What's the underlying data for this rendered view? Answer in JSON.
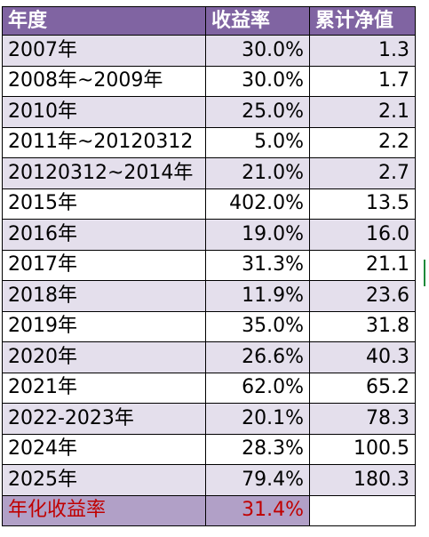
{
  "table": {
    "headers": [
      "年度",
      "收益率",
      "累计净值"
    ],
    "rows": [
      {
        "year": "2007年",
        "return": "30.0%",
        "nav": "1.3"
      },
      {
        "year": "2008年~2009年",
        "return": "30.0%",
        "nav": "1.7"
      },
      {
        "year": "2010年",
        "return": "25.0%",
        "nav": "2.1"
      },
      {
        "year": "2011年~20120312",
        "return": "5.0%",
        "nav": "2.2"
      },
      {
        "year": "20120312~2014年",
        "return": "21.0%",
        "nav": "2.7"
      },
      {
        "year": "2015年",
        "return": "402.0%",
        "nav": "13.5"
      },
      {
        "year": "2016年",
        "return": "19.0%",
        "nav": "16.0"
      },
      {
        "year": "2017年",
        "return": "31.3%",
        "nav": "21.1"
      },
      {
        "year": "2018年",
        "return": "11.9%",
        "nav": "23.6"
      },
      {
        "year": "2019年",
        "return": "35.0%",
        "nav": "31.8"
      },
      {
        "year": "2020年",
        "return": "26.6%",
        "nav": "40.3"
      },
      {
        "year": "2021年",
        "return": "62.0%",
        "nav": "65.2"
      },
      {
        "year": "2022-2023年",
        "return": "20.1%",
        "nav": "78.3"
      },
      {
        "year": "2024年",
        "return": "28.3%",
        "nav": "100.5"
      },
      {
        "year": "2025年",
        "return": "79.4%",
        "nav": "180.3"
      }
    ],
    "summary": {
      "label": "年化收益率",
      "value": "31.4%"
    }
  },
  "colors": {
    "header_bg": "#8064a2",
    "header_text": "#ffffff",
    "band_bg": "#e4dfec",
    "summary_bg": "#b1a0c7",
    "summary_text": "#c00000"
  }
}
